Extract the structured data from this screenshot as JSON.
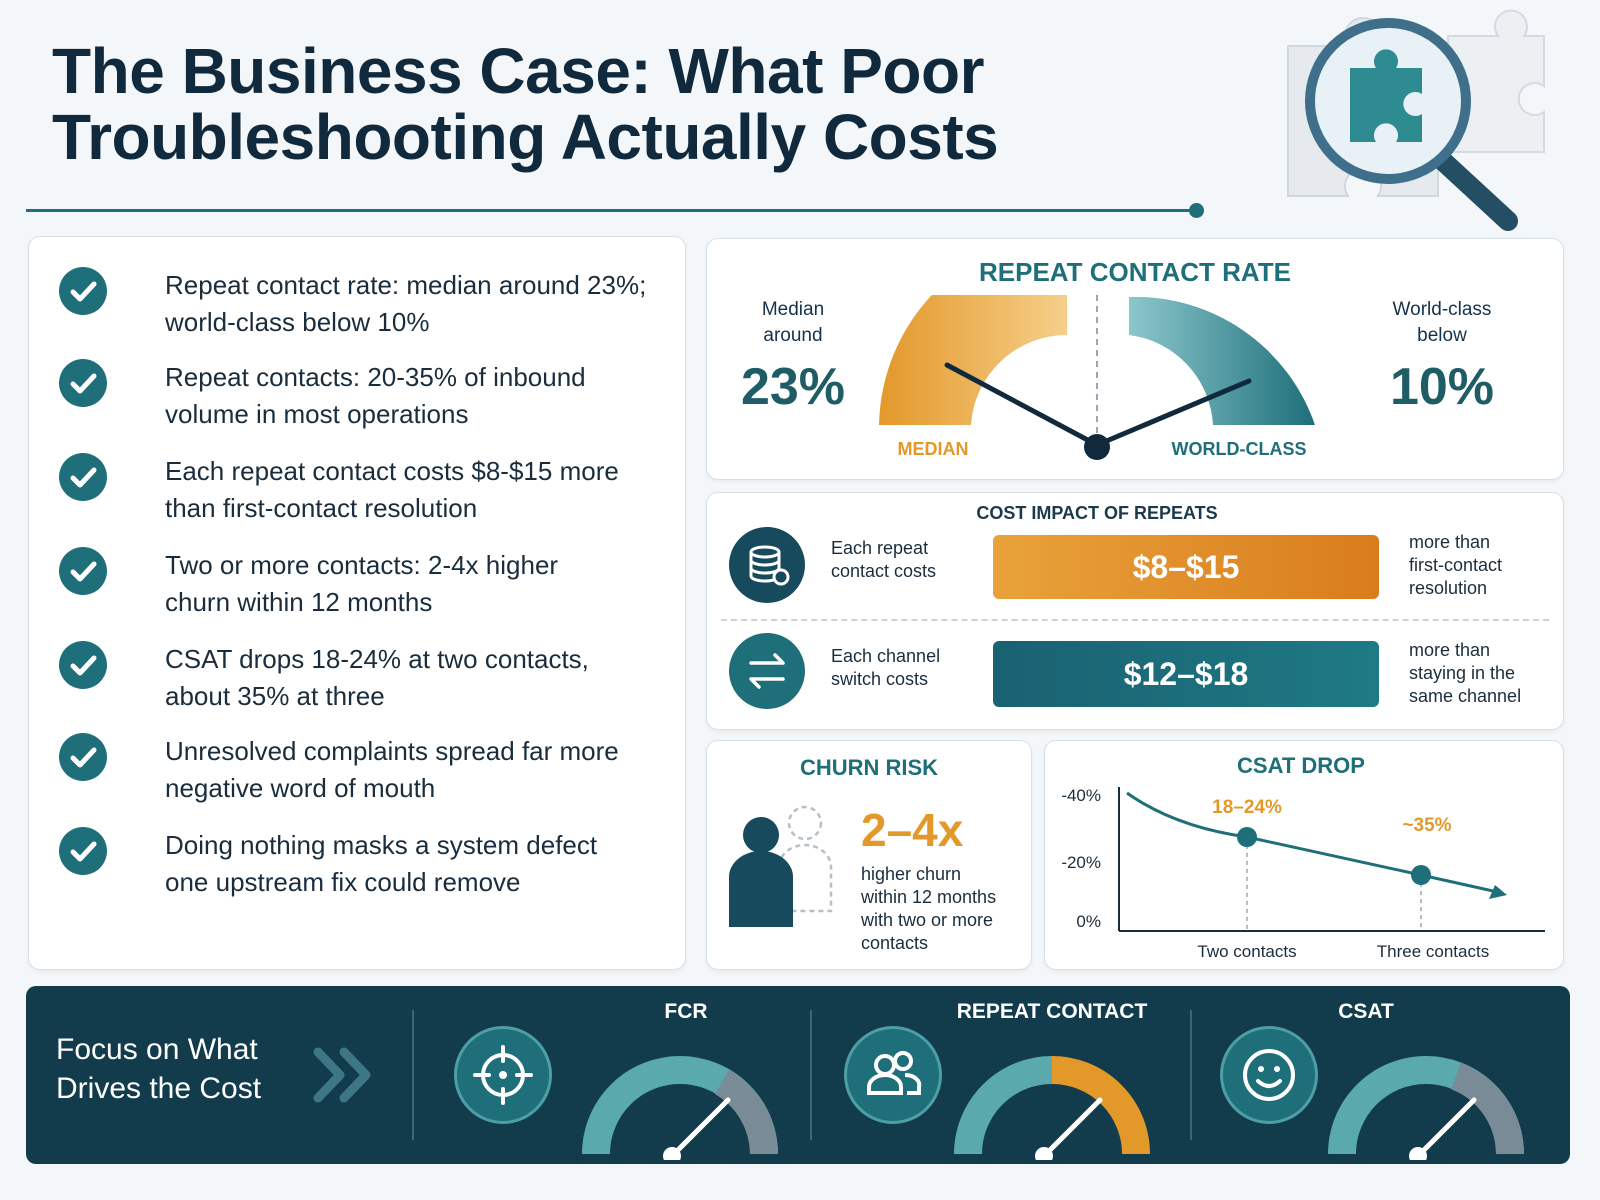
{
  "title": {
    "line1": "The Business Case: What Poor",
    "line2": "Troubleshooting Actually Costs"
  },
  "bullets": [
    {
      "line1": "Repeat contact rate: median around 23%;",
      "line2": "world-class below 10%"
    },
    {
      "line1": "Repeat contacts: 20-35% of inbound",
      "line2": "volume in most operations"
    },
    {
      "line1": "Each repeat contact costs $8-$15 more",
      "line2": "than first-contact resolution"
    },
    {
      "line1": "Two or more contacts: 2-4x higher",
      "line2": "churn within 12 months"
    },
    {
      "line1": "CSAT drops 18-24% at two contacts,",
      "line2": "about 35% at three"
    },
    {
      "line1": "Unresolved complaints spread far more",
      "line2": "negative word of mouth"
    },
    {
      "line1": "Doing nothing masks a system defect",
      "line2": "one upstream fix could remove"
    }
  ],
  "repeat_rate": {
    "heading": "REPEAT CONTACT RATE",
    "median_label1": "Median",
    "median_label2": "around",
    "median_value": "23%",
    "world_label1": "World-class",
    "world_label2": "below",
    "world_value": "10%",
    "gauge_left_label": "MEDIAN",
    "gauge_right_label": "WORLD-CLASS"
  },
  "cost_impact": {
    "heading": "COST IMPACT OF REPEATS",
    "rows": [
      {
        "label1": "Each repeat",
        "label2": "contact costs",
        "value": "$8–$15",
        "note1": "more than",
        "note2": "first-contact",
        "note3": "resolution",
        "icon": "database-icon",
        "color": "#e3982a"
      },
      {
        "label1": "Each channel",
        "label2": "switch costs",
        "value": "$12–$18",
        "note1": "more than",
        "note2": "staying in the",
        "note3": "same channel",
        "icon": "swap-arrows-icon",
        "color": "#1e6f7a"
      }
    ]
  },
  "churn": {
    "heading": "CHURN RISK",
    "value": "2–4x",
    "desc1": "higher churn",
    "desc2": "within 12 months",
    "desc3": "with two or more",
    "desc4": "contacts"
  },
  "chart_data": {
    "type": "line",
    "title": "CSAT DROP",
    "categories": [
      "Two contacts",
      "Three contacts"
    ],
    "y_ticks": [
      "-40%",
      "-20%",
      "0%"
    ],
    "point_labels": [
      "18–24%",
      "~35%"
    ],
    "series": [
      {
        "values": [
          21,
          35
        ]
      }
    ],
    "ylim": [
      0,
      40
    ]
  },
  "footer": {
    "title1": "Focus on What",
    "title2": "Drives the Cost",
    "metrics": [
      {
        "label": "FCR",
        "icon": "target-icon"
      },
      {
        "label": "REPEAT CONTACT",
        "icon": "users-icon"
      },
      {
        "label": "CSAT",
        "icon": "smiley-icon"
      }
    ]
  },
  "colors": {
    "teal": "#1e6f7a",
    "orange": "#e3982a",
    "navy": "#123c4c"
  }
}
